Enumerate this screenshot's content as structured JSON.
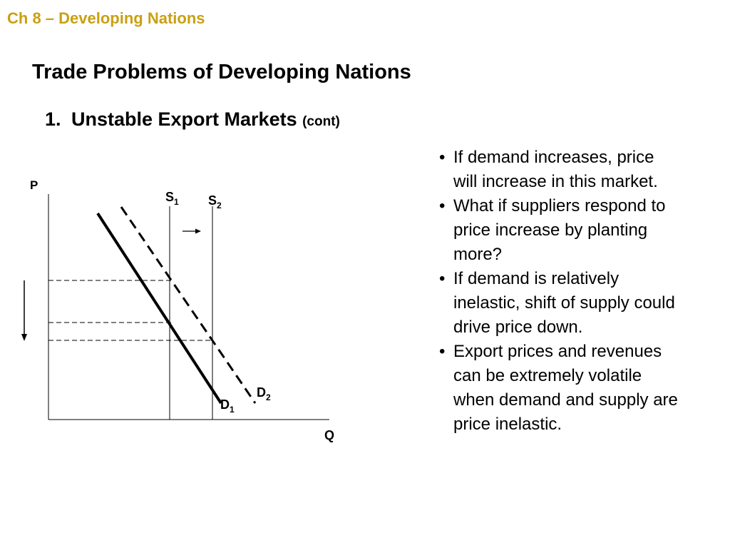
{
  "header": {
    "chapter": "Ch 8 – Developing Nations"
  },
  "slide": {
    "title": "Trade Problems of Developing Nations",
    "subtitle_number": "1.",
    "subtitle_text": "Unstable Export Markets",
    "subtitle_note": "(cont)"
  },
  "bullets": [
    {
      "marker": "•",
      "text": "If demand increases, price will increase in this market."
    },
    {
      "marker": "•",
      "text": "What if suppliers respond to price increase by planting more?"
    },
    {
      "marker": "•",
      "text": "If demand is relatively inelastic, shift of supply could drive price down."
    },
    {
      "marker": "•",
      "text": "Export prices and revenues can be extremely volatile when demand and supply are price inelastic."
    }
  ],
  "diagram": {
    "axis_y": "P",
    "axis_x": "Q",
    "s1": {
      "letter": "S",
      "sub": "1"
    },
    "s2": {
      "letter": "S",
      "sub": "2"
    },
    "d1": {
      "letter": "D",
      "sub": "1"
    },
    "d2": {
      "letter": "D",
      "sub": "2"
    }
  },
  "colors": {
    "chapter": "#c9a012",
    "text": "#000000"
  }
}
